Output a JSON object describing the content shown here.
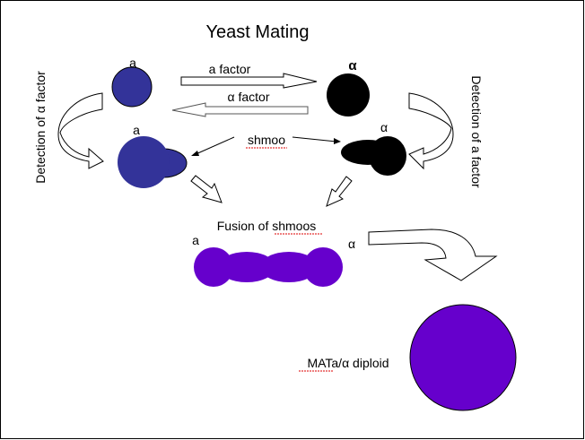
{
  "title": "Yeast Mating",
  "labels": {
    "cell_a_top": "a",
    "cell_alpha_top": "α",
    "a_factor": "a factor",
    "alpha_factor": "α factor",
    "shmoo_a": "a",
    "shmoo_alpha": "α",
    "shmoo": "shmoo",
    "detection_left": "Detection of α factor",
    "detection_right": "Detection of a factor",
    "fusion": "Fusion of shmoos",
    "fused_a": "a",
    "fused_alpha": "α",
    "diploid": "MATa/α diploid"
  },
  "colors": {
    "a_cell": "#333399",
    "alpha_cell": "#000000",
    "fused_cell": "#6600CC"
  }
}
